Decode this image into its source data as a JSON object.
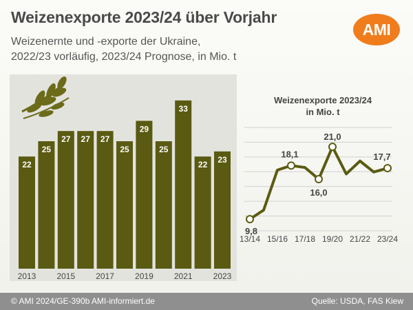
{
  "header": {
    "title": "Weizenexporte 2023/24 über Vorjahr",
    "subtitle_line1": "Weizenernte und -exporte der Ukraine,",
    "subtitle_line2": "2022/23 vorläufig, 2023/24 Prognose, in Mio. t",
    "logo_text": "AMI"
  },
  "footer": {
    "left": "© AMI 2024/GE-390b AMI-informiert.de",
    "right": "Quelle: USDA, FAS Kiew"
  },
  "icons": {
    "decoration": "wheat-ears-icon"
  },
  "colors": {
    "bar": "#5a5a12",
    "line": "#5a5a12",
    "logo": "#f07c1c",
    "footer": "#8f8f8f"
  },
  "chart_data": [
    {
      "type": "bar",
      "title": "",
      "categories": [
        "2013",
        "2014",
        "2015",
        "2016",
        "2017",
        "2018",
        "2019",
        "2020",
        "2021",
        "2022",
        "2023"
      ],
      "x_tick_labels": [
        "2013",
        "2015",
        "2017",
        "2019",
        "2021",
        "2023"
      ],
      "values": [
        22,
        25,
        27,
        27,
        27,
        25,
        29,
        25,
        33,
        22,
        23
      ],
      "ylim": [
        0,
        40
      ],
      "grid": false
    },
    {
      "type": "line",
      "title_line1": "Weizenexporte 2023/24",
      "title_line2": "in Mio. t",
      "categories": [
        "13/14",
        "14/15",
        "15/16",
        "16/17",
        "17/18",
        "18/19",
        "19/20",
        "20/21",
        "21/22",
        "22/23",
        "23/24"
      ],
      "x_tick_labels": [
        "13/14",
        "15/16",
        "17/18",
        "19/20",
        "21/22",
        "23/24"
      ],
      "values": [
        9.8,
        11.2,
        17.4,
        18.1,
        17.8,
        16.0,
        21.0,
        16.8,
        18.8,
        17.1,
        17.7
      ],
      "labels": [
        {
          "index": 0,
          "text": "9,8"
        },
        {
          "index": 3,
          "text": "18,1"
        },
        {
          "index": 5,
          "text": "16,0"
        },
        {
          "index": 6,
          "text": "21,0"
        },
        {
          "index": 10,
          "text": "17,7"
        }
      ],
      "ylim": [
        8,
        24
      ],
      "grid": true
    }
  ]
}
